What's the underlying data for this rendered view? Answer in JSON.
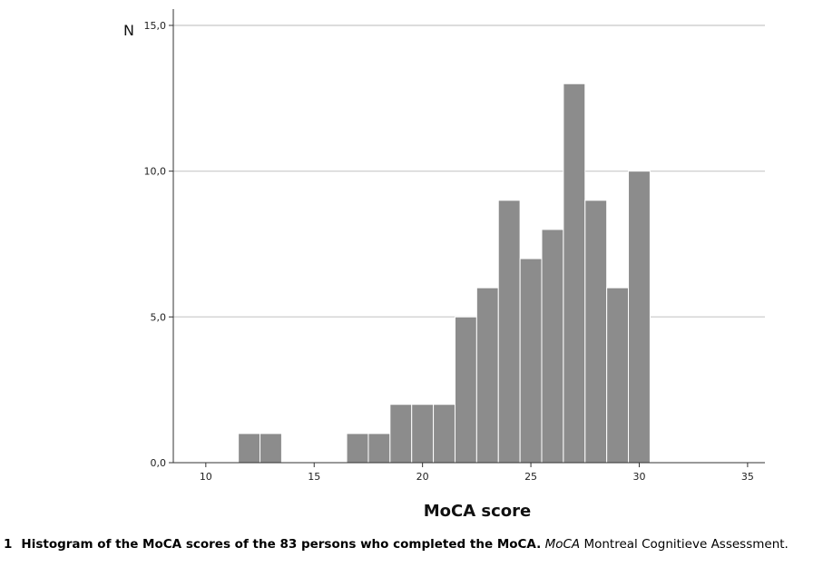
{
  "chart_data": {
    "type": "bar",
    "title": "",
    "xlabel": "MoCA score",
    "ylabel": "N",
    "xlim": [
      8.5,
      35.8
    ],
    "ylim": [
      0,
      15
    ],
    "xticks": [
      10,
      15,
      20,
      25,
      30,
      35
    ],
    "yticks": [
      0,
      5,
      10,
      15
    ],
    "xtick_labels": [
      "10",
      "15",
      "20",
      "25",
      "30",
      "35"
    ],
    "ytick_labels": [
      "0,0",
      "5,0",
      "10,0",
      "15,0"
    ],
    "grid": "horizontal",
    "bar_color": "#8c8c8c",
    "x": [
      12,
      13,
      14,
      15,
      16,
      17,
      18,
      19,
      20,
      21,
      22,
      23,
      24,
      25,
      26,
      27,
      28,
      29,
      30
    ],
    "values": [
      1,
      1,
      0,
      0,
      0,
      1,
      1,
      2,
      2,
      2,
      5,
      6,
      9,
      7,
      8,
      13,
      9,
      6,
      10
    ]
  },
  "caption": {
    "figure_number": "1",
    "bold_text": "Histogram of the MoCA scores of the 83 persons who completed the MoCA.",
    "abbreviation": "MoCA",
    "definition": "Montreal Cognitieve Assessment."
  }
}
